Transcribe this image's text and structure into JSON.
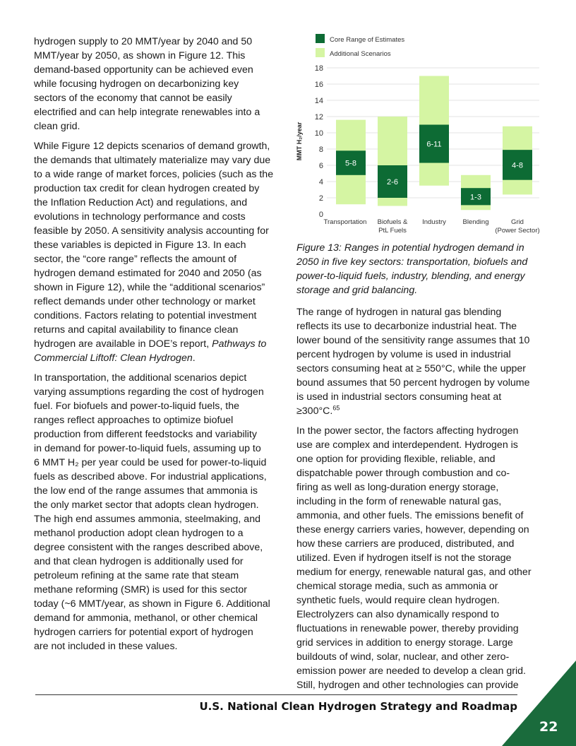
{
  "left_column": [
    [
      "hydrogen supply to 20 MMT/year by 2040 and 50",
      "MMT/year by 2050, as shown in Figure 12. This",
      "demand-based opportunity can be achieved even",
      "while focusing hydrogen on decarbonizing key",
      "sectors of the economy that cannot be easily",
      "electrified and can help integrate renewables into a",
      "clean grid."
    ],
    [
      "While Figure 12 depicts scenarios of demand growth,",
      "the demands that ultimately materialize may vary due",
      "to a wide range of market forces, policies (such as the",
      "production tax credit for clean hydrogen created by",
      "the Inflation Reduction Act) and regulations, and",
      "evolutions in technology performance and costs",
      "feasible by 2050. A sensitivity analysis accounting for",
      "these variables is depicted in Figure 13. In each",
      "sector, the “core range” reflects the amount of",
      "hydrogen demand estimated for 2040 and 2050 (as",
      "shown in Figure 12), while the “additional scenarios”",
      "reflect demands under other technology or market",
      "conditions. Factors relating to potential investment",
      "returns and capital availability to finance clean",
      [
        [
          "hydrogen are available in DOE’s report, ",
          ""
        ],
        [
          "Pathways to",
          "italic"
        ]
      ],
      [
        [
          "Commercial Liftoff: Clean Hydrogen",
          "italic"
        ],
        [
          ".",
          ""
        ]
      ]
    ],
    [
      "In transportation, the additional scenarios depict",
      "varying assumptions regarding the cost of hydrogen",
      "fuel. For biofuels and power-to-liquid fuels, the",
      "ranges reflect approaches to optimize biofuel",
      "production from different feedstocks and variability",
      "in demand for power-to-liquid fuels, assuming up to",
      "6 MMT H₂ per year could be used for power-to-liquid",
      "fuels as described above. For industrial applications,",
      "the low end of the range assumes that ammonia is",
      "the only market sector that adopts clean hydrogen.",
      "The high end assumes ammonia, steelmaking, and",
      "methanol production adopt clean hydrogen to a",
      "degree consistent with the ranges described above,",
      "and that clean hydrogen is additionally used for",
      "petroleum refining at the same rate that steam",
      "methane reforming (SMR) is used for this sector",
      "today (~6 MMT/year, as shown in Figure 6. Additional",
      "demand for ammonia, methanol, or other chemical",
      "hydrogen carriers for potential export of hydrogen",
      "are not included in these values."
    ]
  ],
  "caption": [
    [
      "Figure 13: Ranges in potential hydrogen demand in",
      "2050 in five key sectors: transportation, biofuels and",
      "power-to-liquid fuels, industry, blending, and energy",
      [
        [
          "storage and grid balancing",
          "italic"
        ],
        [
          ".",
          ""
        ]
      ]
    ]
  ],
  "right_column": [
    [
      "The range of hydrogen in natural gas blending",
      "reflects its use to decarbonize industrial heat. The",
      "lower bound of the sensitivity range assumes that 10",
      "percent hydrogen by volume is used in industrial",
      "sectors consuming heat at ≥ 550°C, while the upper",
      "bound assumes that 50 percent hydrogen by volume",
      "is used in industrial sectors consuming heat at",
      [
        [
          "≥300°C.",
          ""
        ],
        [
          "65",
          "sup"
        ]
      ]
    ],
    [
      "In the power sector, the factors affecting hydrogen",
      "use are complex and interdependent. Hydrogen is",
      "one option for providing flexible, reliable, and",
      "dispatchable power through combustion and co-",
      "firing as well as long-duration energy storage,",
      "including in the form of renewable natural gas,",
      "ammonia, and other fuels. The emissions benefit of",
      "these energy carriers varies, however, depending on",
      "how these carriers are produced, distributed, and",
      "utilized. Even if hydrogen itself is not the storage",
      "medium for energy, renewable natural gas, and other",
      "chemical storage media, such as ammonia or",
      "synthetic fuels, would require clean hydrogen.",
      "Electrolyzers can also dynamically respond to",
      "fluctuations in renewable power, thereby providing",
      "grid services in addition to energy storage. Large",
      "buildouts of wind, solar, nuclear, and other zero-",
      "emission power are needed to develop a clean grid.",
      "Still, hydrogen and other technologies can provide"
    ]
  ],
  "footer": {
    "title": "U.S. National Clean Hydrogen Strategy and Roadmap",
    "page_number": "22"
  },
  "colors": {
    "core": "#0d6b34",
    "additional": "#d5f5a3",
    "corner": "#1a6b3c",
    "grid": "#e3e3e3"
  },
  "chart_data": {
    "type": "bar",
    "subtype": "floating-range",
    "ylabel": "MMT H₂/year",
    "ylim": [
      0,
      18
    ],
    "yticks": [
      0,
      2,
      4,
      6,
      8,
      10,
      12,
      14,
      16,
      18
    ],
    "grid": true,
    "legend_position": "top-left",
    "categories": [
      "Transportation",
      "Biofuels & PtL Fuels",
      "Industry",
      "Blending",
      "Grid (Power Sector)"
    ],
    "category_lines": [
      [
        "Transportation"
      ],
      [
        "Biofuels &",
        "PtL Fuels"
      ],
      [
        "Industry"
      ],
      [
        "Blending"
      ],
      [
        "Grid",
        "(Power Sector)"
      ]
    ],
    "series": [
      {
        "name": "Additional Scenarios",
        "ranges": [
          [
            1.2,
            11.6
          ],
          [
            1.0,
            12.0
          ],
          [
            3.5,
            17.0
          ],
          [
            0.5,
            4.8
          ],
          [
            2.4,
            10.8
          ]
        ]
      },
      {
        "name": "Core Range of Estimates",
        "ranges": [
          [
            4.8,
            7.8
          ],
          [
            2.0,
            6.0
          ],
          [
            6.3,
            11.0
          ],
          [
            1.1,
            3.2
          ],
          [
            4.2,
            7.9
          ]
        ],
        "labels": [
          "5-8",
          "2-6",
          "6-11",
          "1-3",
          "4-8"
        ]
      }
    ]
  }
}
